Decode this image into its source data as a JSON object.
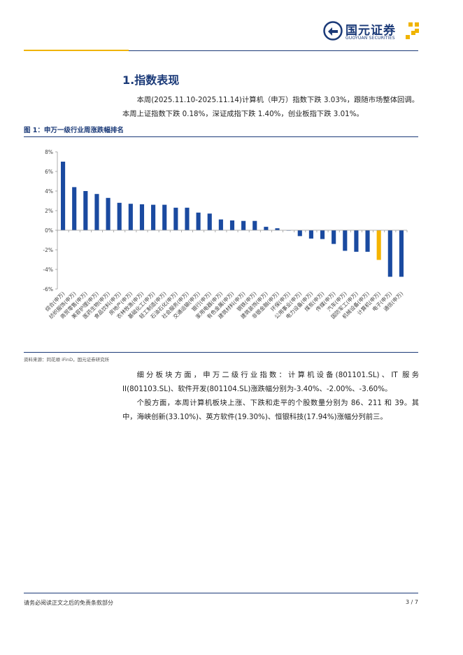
{
  "header": {
    "logo_name": "国元证券",
    "logo_sub": "GUOYUAN SECURITIES",
    "brand_color": "#1b3a78",
    "accent_color": "#f0b400"
  },
  "section": {
    "title": "1.指数表现",
    "para1": "本周(2025.11.10-2025.11.14)计算机（申万）指数下跌 3.03%，跟随市场整体回调。本周上证指数下跌 0.18%，深证成指下跌 1.40%，创业板指下跌 3.01%。"
  },
  "figure": {
    "title": "图 1：申万一级行业周涨跌幅排名",
    "source": "资料来源：同花顺 iFinD，国元证券研究所"
  },
  "chart_data": {
    "type": "bar",
    "categories": [
      "综合(申万)",
      "纺织服饰(申万)",
      "商贸零售(申万)",
      "美容护理(申万)",
      "医药生物(申万)",
      "食品饮料(申万)",
      "房地产(申万)",
      "农林牧渔(申万)",
      "基础化工(申万)",
      "轻工制造(申万)",
      "石油石化(申万)",
      "社会服务(申万)",
      "交通运输(申万)",
      "银行(申万)",
      "家用电器(申万)",
      "有色金属(申万)",
      "建筑材料(申万)",
      "钢铁(申万)",
      "建筑装饰(申万)",
      "非银金融(申万)",
      "环保(申万)",
      "公用事业(申万)",
      "电力设备(申万)",
      "煤炭(申万)",
      "传媒(申万)",
      "汽车(申万)",
      "国防军工(申万)",
      "机械设备(申万)",
      "计算机(申万)",
      "电子(申万)",
      "通信(申万)"
    ],
    "values": [
      7.0,
      4.4,
      4.0,
      3.7,
      3.3,
      2.8,
      2.7,
      2.65,
      2.6,
      2.6,
      2.3,
      2.3,
      1.8,
      1.7,
      1.1,
      1.0,
      0.95,
      0.95,
      0.35,
      0.2,
      0.0,
      -0.6,
      -0.85,
      -0.9,
      -1.4,
      -2.1,
      -2.2,
      -2.2,
      -3.03,
      -4.75,
      -4.75
    ],
    "highlight_index": 28,
    "highlight_color": "#f5b400",
    "bar_color": "#1a4aa0",
    "ylim": [
      -6,
      8
    ],
    "yticks": [
      "8%",
      "6%",
      "4%",
      "2%",
      "0%",
      "-2%",
      "-4%",
      "-6%"
    ],
    "title": "",
    "xlabel": "",
    "ylabel": "",
    "grid": false
  },
  "analysis": {
    "para2": "细分板块方面，申万二级行业指数：计算机设备(801101.SL)、IT 服务 II(801103.SL)、软件开发(801104.SL)涨跌幅分别为-3.40%、-2.00%、-3.60%。",
    "para3": "个股方面，本周计算机板块上涨、下跌和走平的个股数量分别为 86、211 和 39。其中，海峡创新(33.10%)、英方软件(19.30%)、恒银科技(17.94%)涨幅分列前三。"
  },
  "footer": {
    "disclaimer": "请务必阅读正文之后的免责条款部分",
    "page": "3 / 7"
  }
}
